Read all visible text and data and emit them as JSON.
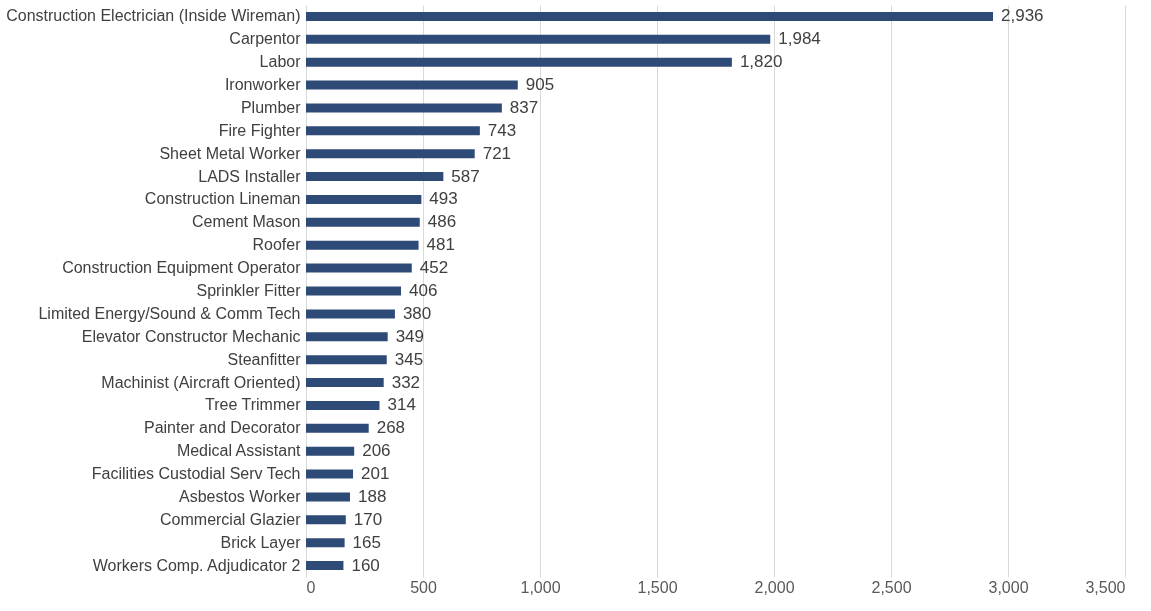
{
  "chart_data": {
    "type": "bar",
    "orientation": "horizontal",
    "categories": [
      "Construction Electrician (Inside Wireman)",
      "Carpentor",
      "Labor",
      "Ironworker",
      "Plumber",
      "Fire Fighter",
      "Sheet Metal Worker",
      "LADS Installer",
      "Construction Lineman",
      "Cement Mason",
      "Roofer",
      "Construction Equipment Operator",
      "Sprinkler Fitter",
      "Limited Energy/Sound & Comm Tech",
      "Elevator Constructor Mechanic",
      "Steanfitter",
      "Machinist (Aircraft Oriented)",
      "Tree Trimmer",
      "Painter and Decorator",
      "Medical Assistant",
      "Facilities Custodial Serv Tech",
      "Asbestos Worker",
      "Commercial Glazier",
      "Brick Layer",
      "Workers Comp. Adjudicator 2"
    ],
    "values": [
      2936,
      1984,
      1820,
      905,
      837,
      743,
      721,
      587,
      493,
      486,
      481,
      452,
      406,
      380,
      349,
      345,
      332,
      314,
      268,
      206,
      201,
      188,
      170,
      165,
      160
    ],
    "color": "#2e4a76",
    "xlim": [
      0,
      3500
    ],
    "xticks": [
      0,
      500,
      {
        "value": 1000,
        "label": "1,000"
      },
      {
        "value": 1500,
        "label": "1,500"
      },
      {
        "value": 2000,
        "label": "2,000"
      },
      {
        "value": 2500,
        "label": "2,500"
      },
      {
        "value": 3000,
        "label": "3,000"
      },
      {
        "value": 3500,
        "label": "3,500"
      }
    ],
    "value_labels": [
      "2,936",
      "1,984",
      "1,820",
      "905",
      "837",
      "743",
      "721",
      "587",
      "493",
      "486",
      "481",
      "452",
      "406",
      "380",
      "349",
      "345",
      "332",
      "314",
      "268",
      "206",
      "201",
      "188",
      "170",
      "165",
      "160"
    ],
    "grid": "x"
  }
}
